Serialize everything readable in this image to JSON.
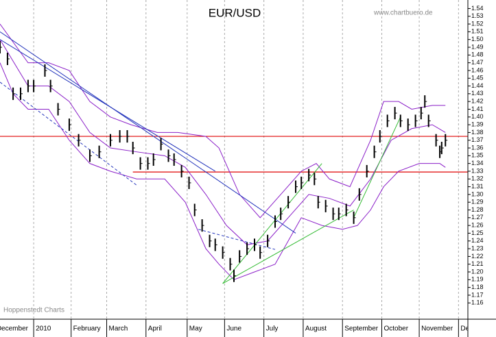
{
  "chart_data": {
    "type": "candlestick",
    "title": "EUR/USD",
    "source": "www.chartbuero.de",
    "credit": "Hoppenstedt Charts",
    "xlim": [
      0,
      250
    ],
    "ylim": [
      1.139,
      1.551
    ],
    "xticks": [
      {
        "value": -3,
        "label": "December"
      },
      {
        "value": 18,
        "label": "2010"
      },
      {
        "value": 38,
        "label": "February"
      },
      {
        "value": 57,
        "label": "March"
      },
      {
        "value": 78,
        "label": "April"
      },
      {
        "value": 100,
        "label": "May"
      },
      {
        "value": 120,
        "label": "June"
      },
      {
        "value": 141,
        "label": "July"
      },
      {
        "value": 162,
        "label": "August"
      },
      {
        "value": 183,
        "label": "September"
      },
      {
        "value": 204,
        "label": "October"
      },
      {
        "value": 224,
        "label": "November"
      },
      {
        "value": 245,
        "label": "December"
      }
    ],
    "yticks": [
      1.54,
      1.53,
      1.52,
      1.51,
      {
        "value": 1.5,
        "label": "1.50"
      },
      1.49,
      1.48,
      1.47,
      1.46,
      1.45,
      1.44,
      1.43,
      1.42,
      1.41,
      {
        "value": 1.4,
        "label": "1.40"
      },
      1.39,
      1.38,
      1.37,
      1.36,
      1.35,
      1.34,
      1.33,
      1.32,
      1.31,
      {
        "value": 1.3,
        "label": "1.30"
      },
      1.29,
      1.28,
      1.27,
      1.26,
      1.25,
      1.24,
      1.23,
      1.22,
      1.21,
      {
        "value": 1.2,
        "label": "1.20"
      },
      1.19,
      1.18,
      1.17,
      1.16
    ],
    "color": "#000000",
    "x": [
      0,
      4,
      7,
      11,
      15,
      18,
      24,
      27,
      31,
      37,
      42,
      48,
      53,
      59,
      64,
      68,
      71,
      75,
      79,
      82,
      86,
      90,
      93,
      97,
      101,
      104,
      108,
      112,
      115,
      119,
      123,
      125,
      128,
      132,
      136,
      139,
      143,
      147,
      150,
      154,
      158,
      161,
      165,
      168,
      170,
      174,
      178,
      181,
      185,
      189,
      192,
      196,
      200,
      203,
      207,
      211,
      214,
      218,
      222,
      225,
      227,
      229,
      233,
      235,
      236,
      238
    ],
    "high": [
      1.498,
      1.483,
      1.438,
      1.438,
      1.448,
      1.448,
      1.468,
      1.448,
      1.418,
      1.398,
      1.378,
      1.358,
      1.363,
      1.378,
      1.383,
      1.383,
      1.368,
      1.348,
      1.348,
      1.353,
      1.373,
      1.358,
      1.353,
      1.338,
      1.323,
      1.288,
      1.268,
      1.248,
      1.243,
      1.233,
      1.218,
      1.203,
      1.228,
      1.238,
      1.243,
      1.233,
      1.248,
      1.273,
      1.283,
      1.298,
      1.318,
      1.323,
      1.333,
      1.328,
      1.298,
      1.293,
      1.283,
      1.283,
      1.288,
      1.278,
      1.308,
      1.338,
      1.363,
      1.383,
      1.403,
      1.413,
      1.403,
      1.398,
      1.403,
      1.413,
      1.428,
      1.403,
      1.378,
      1.363,
      1.368,
      1.378
    ],
    "low": [
      1.482,
      1.467,
      1.422,
      1.422,
      1.432,
      1.432,
      1.452,
      1.432,
      1.402,
      1.382,
      1.362,
      1.342,
      1.347,
      1.362,
      1.367,
      1.367,
      1.352,
      1.332,
      1.332,
      1.337,
      1.357,
      1.342,
      1.337,
      1.322,
      1.307,
      1.272,
      1.252,
      1.232,
      1.227,
      1.217,
      1.202,
      1.187,
      1.212,
      1.222,
      1.227,
      1.217,
      1.232,
      1.257,
      1.267,
      1.282,
      1.302,
      1.307,
      1.317,
      1.312,
      1.282,
      1.277,
      1.267,
      1.267,
      1.272,
      1.262,
      1.292,
      1.322,
      1.347,
      1.367,
      1.387,
      1.397,
      1.387,
      1.382,
      1.387,
      1.397,
      1.412,
      1.387,
      1.362,
      1.347,
      1.352,
      1.362
    ],
    "close": [
      1.49,
      1.475,
      1.43,
      1.43,
      1.44,
      1.44,
      1.46,
      1.44,
      1.41,
      1.39,
      1.37,
      1.35,
      1.355,
      1.37,
      1.375,
      1.375,
      1.36,
      1.34,
      1.34,
      1.345,
      1.365,
      1.35,
      1.345,
      1.33,
      1.315,
      1.28,
      1.26,
      1.24,
      1.235,
      1.225,
      1.21,
      1.195,
      1.22,
      1.23,
      1.235,
      1.225,
      1.24,
      1.265,
      1.275,
      1.29,
      1.31,
      1.315,
      1.325,
      1.32,
      1.29,
      1.285,
      1.275,
      1.275,
      1.28,
      1.27,
      1.3,
      1.33,
      1.355,
      1.375,
      1.395,
      1.405,
      1.395,
      1.39,
      1.395,
      1.405,
      1.42,
      1.395,
      1.37,
      1.355,
      1.36,
      1.37
    ],
    "bands": [
      {
        "color": "#8a1ec8",
        "x": [
          0,
          15,
          26,
          37,
          48,
          59,
          70,
          84,
          95,
          110,
          117,
          128,
          139,
          150,
          161,
          169,
          176,
          187,
          198,
          205,
          213,
          220,
          231,
          238
        ],
        "values": [
          1.52,
          1.47,
          1.47,
          1.46,
          1.42,
          1.4,
          1.39,
          1.38,
          1.38,
          1.375,
          1.36,
          1.3,
          1.27,
          1.3,
          1.33,
          1.34,
          1.32,
          1.31,
          1.37,
          1.42,
          1.42,
          1.41,
          1.415,
          1.415
        ]
      },
      {
        "color": "#8a1ec8",
        "x": [
          0,
          15,
          26,
          37,
          48,
          59,
          73,
          88,
          99,
          110,
          121,
          132,
          143,
          154,
          165,
          176,
          187,
          198,
          209,
          220,
          231,
          238
        ],
        "values": [
          1.5,
          1.44,
          1.44,
          1.42,
          1.38,
          1.36,
          1.355,
          1.35,
          1.335,
          1.3,
          1.26,
          1.235,
          1.24,
          1.27,
          1.3,
          1.295,
          1.285,
          1.32,
          1.37,
          1.385,
          1.39,
          1.38
        ]
      },
      {
        "color": "#8a1ec8",
        "x": [
          0,
          7,
          15,
          26,
          37,
          48,
          59,
          73,
          88,
          99,
          110,
          117,
          125,
          136,
          147,
          154,
          161,
          172,
          183,
          191,
          198,
          205,
          213,
          224,
          235,
          238
        ],
        "values": [
          1.47,
          1.43,
          1.41,
          1.41,
          1.37,
          1.34,
          1.33,
          1.32,
          1.32,
          1.29,
          1.23,
          1.21,
          1.19,
          1.2,
          1.21,
          1.24,
          1.27,
          1.26,
          1.255,
          1.26,
          1.28,
          1.31,
          1.33,
          1.34,
          1.34,
          1.335
        ]
      }
    ],
    "trendlines": [
      {
        "color": "#2233bb",
        "style": "solid",
        "x": [
          0,
          158
        ],
        "values": [
          1.51,
          1.25
        ]
      },
      {
        "color": "#2233bb",
        "style": "solid",
        "x": [
          0,
          115
        ],
        "values": [
          1.5,
          1.33
        ]
      },
      {
        "color": "#2233bb",
        "style": "dashed",
        "x": [
          0,
          73
        ],
        "values": [
          1.445,
          1.312
        ]
      },
      {
        "color": "#2233bb",
        "style": "dashed",
        "x": [
          106,
          147
        ],
        "values": [
          1.255,
          1.229
        ]
      },
      {
        "color": "#33bb33",
        "style": "solid",
        "x": [
          119,
          172
        ],
        "values": [
          1.185,
          1.34
        ]
      },
      {
        "color": "#33bb33",
        "style": "solid",
        "x": [
          119,
          189
        ],
        "values": [
          1.185,
          1.28
        ]
      },
      {
        "color": "#33bb33",
        "style": "solid",
        "x": [
          189,
          214
        ],
        "values": [
          1.27,
          1.4
        ]
      }
    ],
    "reference_lines": [
      {
        "color": "#e00000",
        "value": 1.375,
        "x": [
          0,
          250
        ]
      },
      {
        "color": "#e00000",
        "value": 1.329,
        "x": [
          71,
          250
        ]
      }
    ]
  }
}
